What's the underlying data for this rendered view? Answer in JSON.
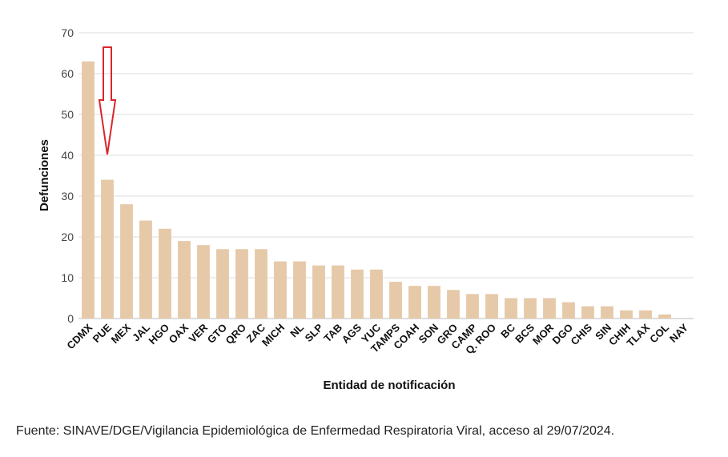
{
  "chart_data": {
    "type": "bar",
    "title": "",
    "xlabel": "Entidad de notificación",
    "ylabel": "Defunciones",
    "ylim": [
      0,
      70
    ],
    "yticks": [
      0,
      10,
      20,
      30,
      40,
      50,
      60,
      70
    ],
    "grid": true,
    "bar_color": "#e6c9a8",
    "annotation": {
      "type": "arrow-down",
      "target": "PUE",
      "color": "#d9262c"
    },
    "categories": [
      "CDMX",
      "PUE",
      "MEX",
      "JAL",
      "HGO",
      "OAX",
      "VER",
      "GTO",
      "QRO",
      "ZAC",
      "MICH",
      "NL",
      "SLP",
      "TAB",
      "AGS",
      "YUC",
      "TAMPS",
      "COAH",
      "SON",
      "GRO",
      "CAMP",
      "Q. ROO",
      "BC",
      "BCS",
      "MOR",
      "DGO",
      "CHIS",
      "SIN",
      "CHIH",
      "TLAX",
      "COL",
      "NAY"
    ],
    "values": [
      63,
      34,
      28,
      24,
      22,
      19,
      18,
      17,
      17,
      17,
      14,
      14,
      13,
      13,
      12,
      12,
      9,
      8,
      8,
      7,
      6,
      6,
      5,
      5,
      5,
      4,
      3,
      3,
      2,
      2,
      1,
      0
    ]
  },
  "source": "Fuente: SINAVE/DGE/Vigilancia Epidemiológica de Enfermedad Respiratoria Viral, acceso al 29/07/2024."
}
